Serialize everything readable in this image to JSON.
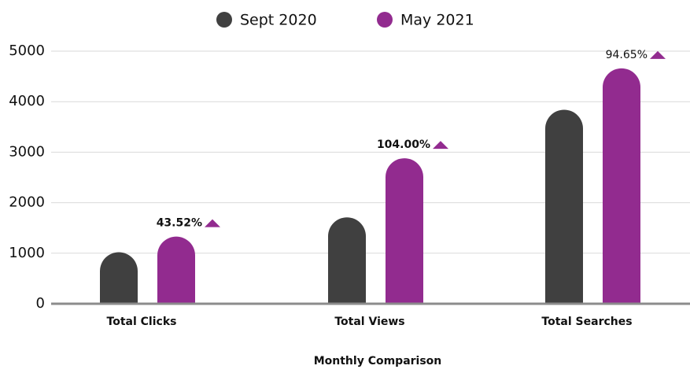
{
  "chart_data": {
    "type": "bar",
    "x_label": "Monthly Comparison",
    "categories": [
      "Total Clicks",
      "Total Views",
      "Total Searches"
    ],
    "series": [
      {
        "name": "Sept 2020",
        "color": "#404040",
        "values": [
          1020,
          1710,
          3840
        ]
      },
      {
        "name": "May 2021",
        "color": "#922b8f",
        "values": [
          1330,
          2880,
          4660
        ]
      }
    ],
    "annotations": [
      "43.52%",
      "104.00%",
      "94.65%"
    ],
    "ylim": [
      0,
      5000
    ],
    "yticks": [
      0,
      1000,
      2000,
      3000,
      4000,
      5000
    ],
    "grid": true,
    "legend": "top"
  }
}
